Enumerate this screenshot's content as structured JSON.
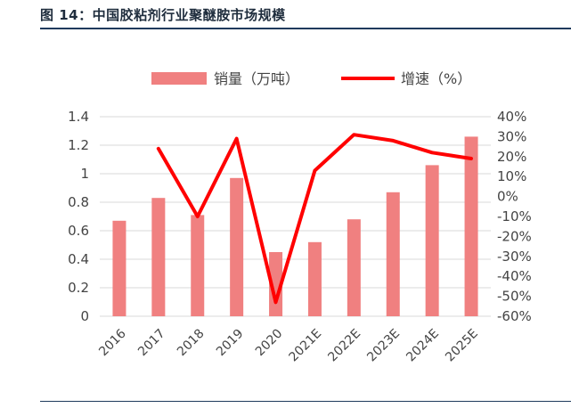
{
  "title": "图 14：中国胶粘剂行业聚醚胺市场规模",
  "chart_data": {
    "type": "bar+line",
    "categories": [
      "2016",
      "2017",
      "2018",
      "2019",
      "2020",
      "2021E",
      "2022E",
      "2023E",
      "2024E",
      "2025E"
    ],
    "series": [
      {
        "name": "销量（万吨）",
        "type": "bar",
        "axis": "left",
        "color": "#f08080",
        "values": [
          0.67,
          0.83,
          0.71,
          0.97,
          0.45,
          0.52,
          0.68,
          0.87,
          1.06,
          1.26
        ]
      },
      {
        "name": "增速（%）",
        "type": "line",
        "axis": "right",
        "color": "#ff0000",
        "values": [
          null,
          24,
          -10,
          29,
          -53,
          13,
          31,
          28,
          22,
          19
        ]
      }
    ],
    "left_axis": {
      "ylim": [
        0,
        1.4
      ],
      "ticks": [
        "0",
        "0.2",
        "0.4",
        "0.6",
        "0.8",
        "1",
        "1.2",
        "1.4"
      ]
    },
    "right_axis": {
      "ylim": [
        -60,
        40
      ],
      "ticks": [
        "-60%",
        "-50%",
        "-40%",
        "-30%",
        "-20%",
        "-10%",
        "0%",
        "10%",
        "20%",
        "30%",
        "40%"
      ]
    },
    "legend": [
      {
        "label": "销量（万吨）",
        "color": "#f08080"
      },
      {
        "label": "增速（%）",
        "color": "#ff0000"
      }
    ]
  }
}
